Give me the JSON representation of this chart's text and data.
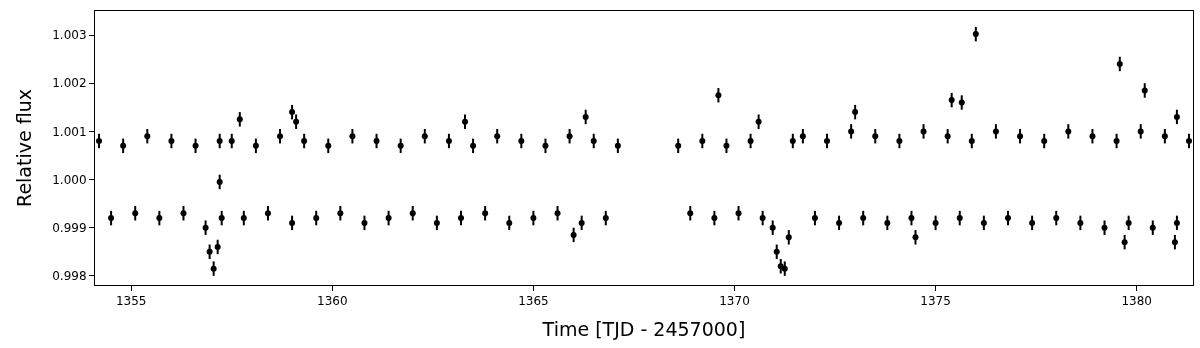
{
  "chart_data": {
    "type": "scatter",
    "xlabel": "Time [TJD - 2457000]",
    "ylabel": "Relative flux",
    "xlim": [
      1354.1,
      1381.4
    ],
    "xticks": [
      1355,
      1360,
      1365,
      1370,
      1375,
      1380
    ],
    "ylim": [
      0.99781,
      1.0035
    ],
    "yticks": [
      0.998,
      0.999,
      {
        "value": 1.0,
        "label": "1.000"
      },
      1.001,
      1.002,
      1.003
    ],
    "marker": "circle",
    "series": [
      {
        "color": "#000000",
        "x": [
          1354.2,
          1354.5,
          1354.8,
          1355.1,
          1355.4,
          1355.7,
          1356.0,
          1356.3,
          1356.6,
          1356.85,
          1356.95,
          1357.05,
          1357.15,
          1357.2,
          1357.25,
          1357.5,
          1357.8,
          1358.1,
          1358.4,
          1358.7,
          1359.0,
          1359.3,
          1359.6,
          1359.9,
          1360.2,
          1360.5,
          1360.8,
          1361.1,
          1361.4,
          1361.7,
          1362.0,
          1362.3,
          1362.6,
          1362.9,
          1363.2,
          1363.5,
          1363.8,
          1364.1,
          1364.4,
          1364.7,
          1365.0,
          1365.3,
          1365.6,
          1365.9,
          1366.2,
          1366.5,
          1366.8,
          1367.1,
          1368.6,
          1368.9,
          1369.2,
          1369.5,
          1369.8,
          1370.1,
          1370.4,
          1370.7,
          1370.95,
          1371.05,
          1371.15,
          1371.25,
          1371.35,
          1371.45,
          1371.7,
          1372.0,
          1372.3,
          1372.6,
          1372.9,
          1373.2,
          1373.5,
          1373.8,
          1374.1,
          1374.4,
          1374.7,
          1375.0,
          1375.3,
          1375.6,
          1375.9,
          1376.2,
          1376.5,
          1376.8,
          1377.1,
          1377.4,
          1377.7,
          1378.0,
          1378.3,
          1378.6,
          1378.9,
          1379.2,
          1379.5,
          1379.8,
          1380.1,
          1380.4,
          1380.7,
          1381.0,
          1381.3,
          1357.7,
          1359.0,
          1359.1,
          1363.3,
          1366.3,
          1366.0,
          1357.2,
          1369.6,
          1370.6,
          1373.0,
          1374.5,
          1375.4,
          1375.65,
          1376.0,
          1379.58,
          1379.7,
          1380.2,
          1380.95,
          1381.0
        ],
        "values": [
          1.0008,
          0.9992,
          1.0007,
          0.9993,
          1.0009,
          0.9992,
          1.0008,
          0.9993,
          1.0007,
          0.999,
          0.9985,
          0.99815,
          0.9986,
          1.0008,
          0.9992,
          1.0008,
          0.9992,
          1.0007,
          0.9993,
          1.0009,
          0.9991,
          1.0008,
          0.9992,
          1.0007,
          0.9993,
          1.0009,
          0.9991,
          1.0008,
          0.9992,
          1.0007,
          0.9993,
          1.0009,
          0.9991,
          1.0008,
          0.9992,
          1.0007,
          0.9993,
          1.0009,
          0.9991,
          1.0008,
          0.9992,
          1.0007,
          0.9993,
          1.0009,
          0.9991,
          1.0008,
          0.9992,
          1.0007,
          1.0007,
          0.9993,
          1.0008,
          0.9992,
          1.0007,
          0.9993,
          1.0008,
          0.9992,
          0.999,
          0.9985,
          0.9982,
          0.99815,
          0.9988,
          1.0008,
          1.0009,
          0.9992,
          1.0008,
          0.9991,
          1.001,
          0.9992,
          1.0009,
          0.9991,
          1.0008,
          0.9992,
          1.001,
          0.9991,
          1.0009,
          0.9992,
          1.0008,
          0.9991,
          1.001,
          0.9992,
          1.0009,
          0.9991,
          1.0008,
          0.9992,
          1.001,
          0.9991,
          1.0009,
          0.999,
          1.0008,
          0.9991,
          1.001,
          0.999,
          1.0009,
          0.9991,
          1.0008,
          1.00125,
          1.0014,
          1.0012,
          1.0012,
          1.0013,
          0.99885,
          0.99995,
          1.00175,
          1.0012,
          1.0014,
          0.9988,
          1.00165,
          1.0016,
          1.00302,
          1.0024,
          0.9987,
          1.00185,
          0.9987,
          1.0013
        ],
        "errors": [
          0.00015,
          0.00015,
          0.00015,
          0.00015,
          0.00015,
          0.00015,
          0.00015,
          0.00015,
          0.00015,
          0.00015,
          0.00015,
          0.00015,
          0.00015,
          0.00015,
          0.00015,
          0.00015,
          0.00015,
          0.00015,
          0.00015,
          0.00015,
          0.00015,
          0.00015,
          0.00015,
          0.00015,
          0.00015,
          0.00015,
          0.00015,
          0.00015,
          0.00015,
          0.00015,
          0.00015,
          0.00015,
          0.00015,
          0.00015,
          0.00015,
          0.00015,
          0.00015,
          0.00015,
          0.00015,
          0.00015,
          0.00015,
          0.00015,
          0.00015,
          0.00015,
          0.00015,
          0.00015,
          0.00015,
          0.00015,
          0.00015,
          0.00015,
          0.00015,
          0.00015,
          0.00015,
          0.00015,
          0.00015,
          0.00015,
          0.00015,
          0.00015,
          0.00015,
          0.00015,
          0.00015,
          0.00015,
          0.00015,
          0.00015,
          0.00015,
          0.00015,
          0.00015,
          0.00015,
          0.00015,
          0.00015,
          0.00015,
          0.00015,
          0.00015,
          0.00015,
          0.00015,
          0.00015,
          0.00015,
          0.00015,
          0.00015,
          0.00015,
          0.00015,
          0.00015,
          0.00015,
          0.00015,
          0.00015,
          0.00015,
          0.00015,
          0.00015,
          0.00015,
          0.00015,
          0.00015,
          0.00015,
          0.00015,
          0.00015,
          0.00015,
          0.00015,
          0.00015,
          0.00015,
          0.00015,
          0.00015,
          0.00015,
          0.00015,
          0.00015,
          0.00015,
          0.00015,
          0.00015,
          0.00015,
          0.00015,
          0.00015,
          0.00015,
          0.00015,
          0.00015,
          0.00015,
          0.00015
        ]
      }
    ]
  }
}
